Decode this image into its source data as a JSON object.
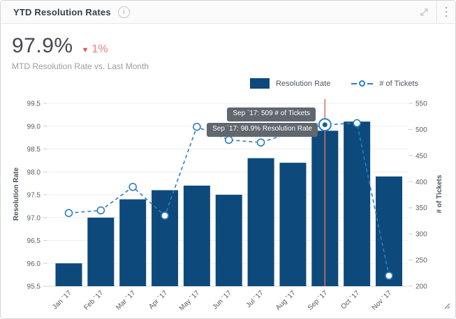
{
  "header": {
    "title": "YTD Resolution Rates",
    "info_glyph": "i"
  },
  "kpi": {
    "value": "97.9%",
    "delta_symbol": "▼",
    "delta": "1%",
    "subtitle": "MTD Resolution Rate vs. Last Month",
    "delta_color": "#e2564e"
  },
  "legend": {
    "items": [
      {
        "label": "Resolution Rate",
        "marker": "bar-swatch"
      },
      {
        "label": "# of Tickets",
        "marker": "dashed-line-open-circle"
      }
    ]
  },
  "chart_data": {
    "type": "bar+line",
    "categories": [
      "Jan `17",
      "Feb `17",
      "Mar `17",
      "Apr `17",
      "May `17",
      "Jun `17",
      "Jul `17",
      "Aug `17",
      "Sep `17",
      "Oct `17",
      "Nov `17"
    ],
    "series": [
      {
        "name": "Resolution Rate",
        "type": "bar",
        "axis": "left",
        "color": "#0d4a7b",
        "values": [
          96.0,
          97.0,
          97.4,
          97.6,
          97.7,
          97.5,
          98.3,
          98.2,
          98.9,
          99.1,
          97.9
        ]
      },
      {
        "name": "# of Tickets",
        "type": "line",
        "style": "dashed",
        "marker": "open-circle",
        "axis": "right",
        "color": "#2e7dc2",
        "values": [
          340,
          345,
          390,
          335,
          505,
          480,
          475,
          495,
          509,
          512,
          220
        ]
      }
    ],
    "left_axis": {
      "title": "Resolution Rate",
      "min": 95.5,
      "max": 99.5,
      "ticks": [
        "95.5",
        "96.0",
        "96.5",
        "97.0",
        "97.5",
        "98.0",
        "98.5",
        "99.0",
        "99.5"
      ]
    },
    "right_axis": {
      "title": "# of Tickets",
      "min": 200,
      "max": 550,
      "ticks": [
        "200",
        "250",
        "300",
        "350",
        "400",
        "450",
        "500",
        "550"
      ]
    },
    "grid": true,
    "legend_position": "top-right",
    "highlight": {
      "category_index": 8,
      "vertical_line_color": "#d9705c",
      "marker_inner_color": "#1b5e9b",
      "tooltips": [
        "Sep `17: 509 # of Tickets",
        "Sep `17: 98.9% Resolution Rate"
      ]
    }
  }
}
